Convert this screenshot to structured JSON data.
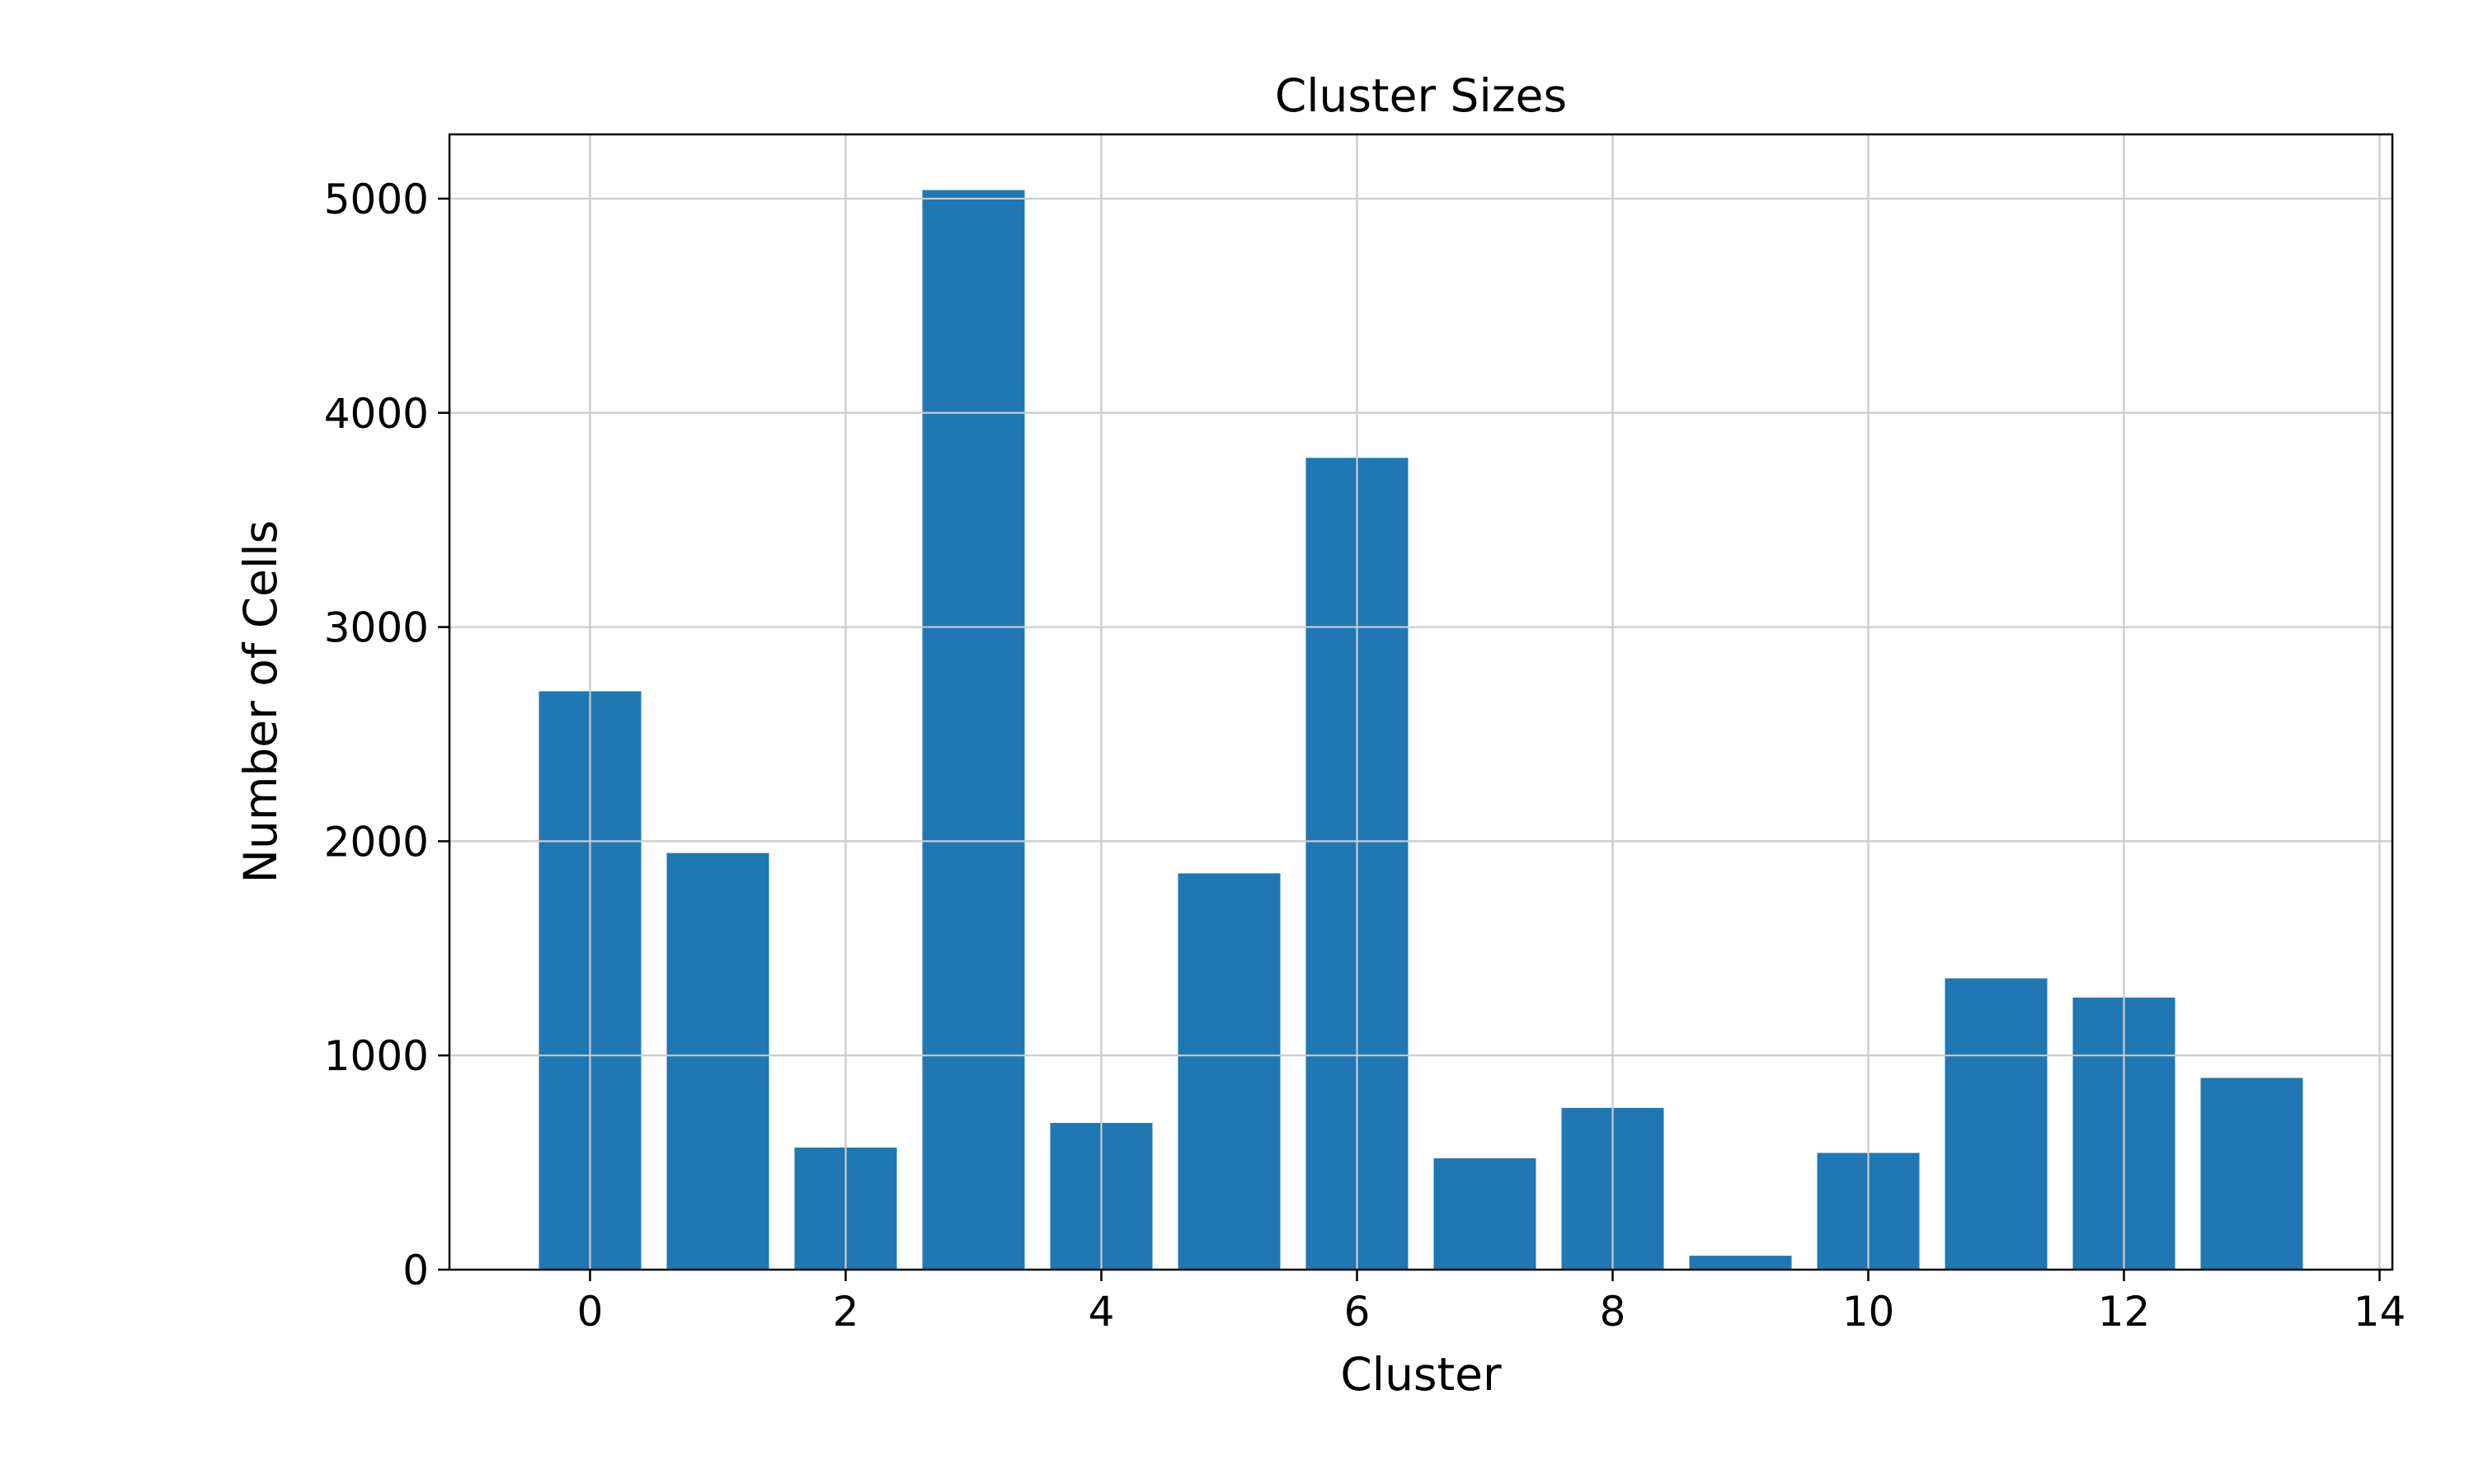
{
  "chart_data": {
    "type": "bar",
    "title": "Cluster Sizes",
    "xlabel": "Cluster",
    "ylabel": "Number of Cells",
    "x": [
      0,
      1,
      2,
      3,
      4,
      5,
      6,
      7,
      8,
      9,
      10,
      11,
      12,
      13
    ],
    "values": [
      2700,
      1945,
      570,
      5040,
      685,
      1850,
      3790,
      520,
      755,
      65,
      545,
      1360,
      1270,
      895
    ],
    "xlim": [
      -1.1,
      14.1
    ],
    "ylim": [
      0,
      5300
    ],
    "xticks": [
      0,
      2,
      4,
      6,
      8,
      10,
      12,
      14
    ],
    "yticks": [
      0,
      1000,
      2000,
      3000,
      4000,
      5000
    ],
    "bar_width": 0.8,
    "bar_color": "#1f77b4",
    "grid": true,
    "grid_color": "#cccccc",
    "legend": "none"
  }
}
